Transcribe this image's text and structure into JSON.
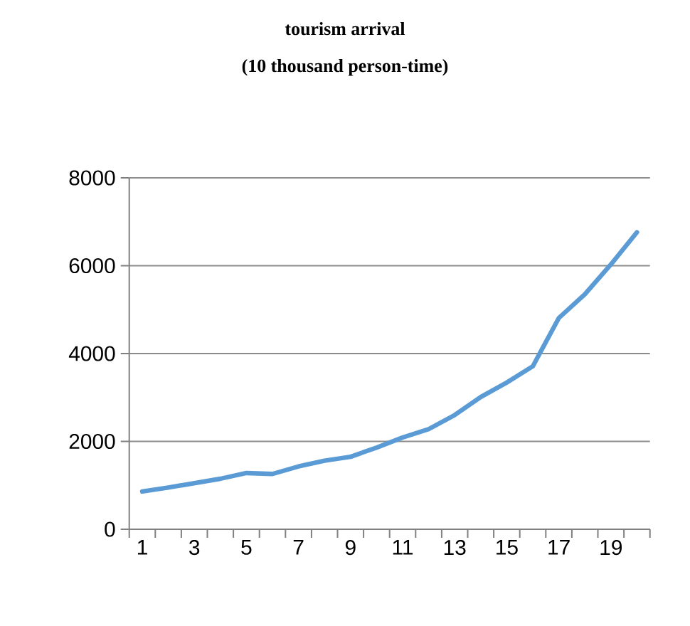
{
  "chart_data": {
    "type": "line",
    "title": "tourism arrival",
    "subtitle": "(10 thousand person-time)",
    "categories": [
      "1",
      null,
      "3",
      null,
      "5",
      null,
      "7",
      null,
      "9",
      null,
      "11",
      null,
      "13",
      null,
      "15",
      null,
      "17",
      null,
      "19",
      null
    ],
    "series": [
      {
        "color": "#5b9bd5",
        "values": [
          860,
          950,
          1050,
          1150,
          1280,
          1260,
          1430,
          1560,
          1650,
          1860,
          2090,
          2280,
          2600,
          3010,
          3340,
          3710,
          4810,
          5350,
          6030,
          6760
        ]
      }
    ],
    "ylim": [
      0,
      8000
    ],
    "yticks": [
      0,
      2000,
      4000,
      6000,
      8000
    ],
    "grid": "y",
    "marker": "none",
    "line_style": "solid"
  }
}
